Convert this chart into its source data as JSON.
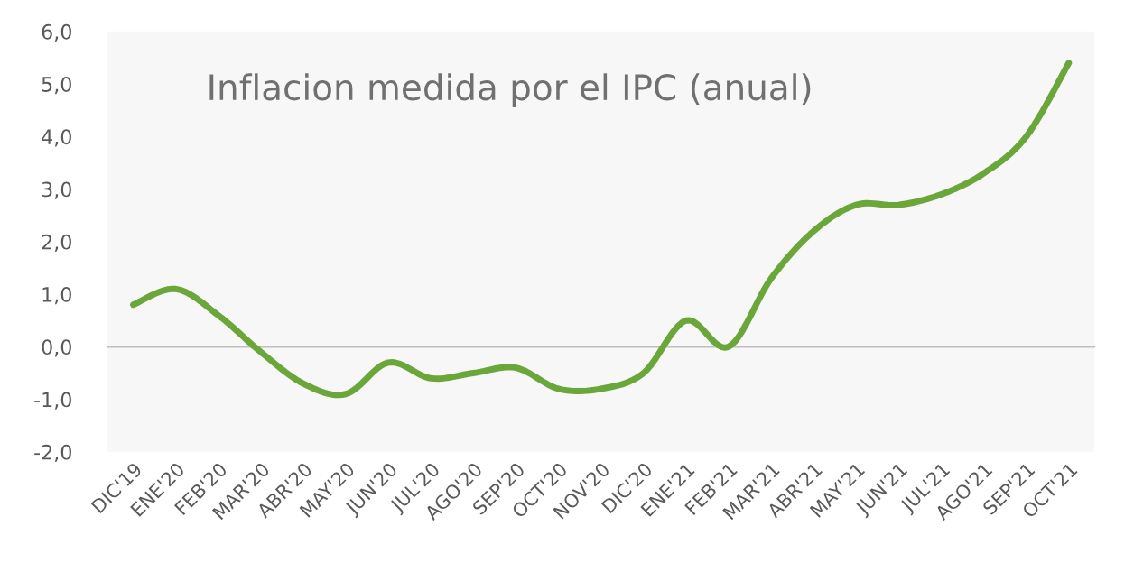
{
  "chart_data": {
    "type": "line",
    "title": "Inflacion medida por el IPC (anual)",
    "categories": [
      "DIC'19",
      "ENE'20",
      "FEB'20",
      "MAR'20",
      "ABR'20",
      "MAY'20",
      "JUN'20",
      "JUL'20",
      "AGO'20",
      "SEP'20",
      "OCT'20",
      "NOV'20",
      "DIC'20",
      "ENE'21",
      "FEB'21",
      "MAR'21",
      "ABR'21",
      "MAY'21",
      "JUN'21",
      "JUL'21",
      "AGO'21",
      "SEP'21",
      "OCT'21"
    ],
    "series": [
      {
        "color": "#6aa63a",
        "values": [
          0.8,
          1.1,
          0.6,
          -0.1,
          -0.7,
          -0.9,
          -0.3,
          -0.6,
          -0.5,
          -0.4,
          -0.8,
          -0.8,
          -0.5,
          0.5,
          0.0,
          1.3,
          2.2,
          2.7,
          2.7,
          2.9,
          3.3,
          4.0,
          5.4
        ]
      }
    ],
    "ylim": [
      -2,
      6
    ],
    "yticks": [
      {
        "value": -2,
        "label": "-2,0"
      },
      {
        "value": -1,
        "label": "-1,0"
      },
      {
        "value": 0,
        "label": "0,0"
      },
      {
        "value": 1,
        "label": "1,0"
      },
      {
        "value": 2,
        "label": "2,0"
      },
      {
        "value": 3,
        "label": "3,0"
      },
      {
        "value": 4,
        "label": "4,0"
      },
      {
        "value": 5,
        "label": "5,0"
      },
      {
        "value": 6,
        "label": "6,0"
      }
    ],
    "legend": false,
    "marker": "none",
    "line_style": "solid"
  }
}
